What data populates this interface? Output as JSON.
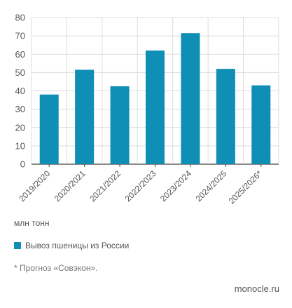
{
  "chart_data": {
    "type": "bar",
    "categories": [
      "2019/2020",
      "2020/2021",
      "2021/2022",
      "2022/2023",
      "2023/2024",
      "2024/2025",
      "2025/2026*"
    ],
    "series": [
      {
        "name": "Вывоз пшеницы из России",
        "values": [
          38,
          51.5,
          42.5,
          62,
          71.5,
          52,
          43
        ]
      }
    ],
    "ylim": [
      0,
      80
    ],
    "yticks": [
      0,
      10,
      20,
      30,
      40,
      50,
      60,
      70,
      80
    ],
    "grid": true,
    "ylabel": "млн тонн",
    "bar_color": "#0f8fb5"
  },
  "legend": {
    "label": "Вывоз пшеницы из России"
  },
  "footnote": "* Прогноз «Совэкон».",
  "source": "monocle.ru"
}
